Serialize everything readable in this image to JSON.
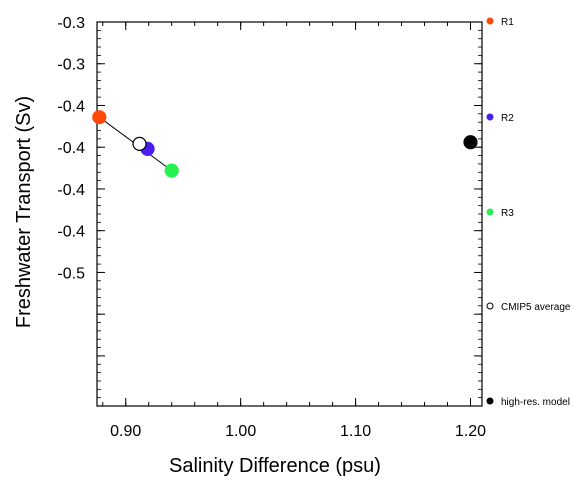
{
  "chart_data": {
    "type": "scatter",
    "xlabel": "Salinity Difference (psu)",
    "ylabel": "Freshwater Transport (Sv)",
    "xlim": [
      0.875,
      1.21
    ],
    "ylim": [
      -0.53,
      -0.3
    ],
    "x_ticks": [
      0.9,
      1.0,
      1.1,
      1.2
    ],
    "x_tick_labels": [
      "0.90",
      "1.00",
      "1.10",
      "1.20"
    ],
    "y_ticks": [
      -0.3,
      -0.35,
      -0.4,
      -0.45,
      -0.5
    ],
    "y_tick_labels": [
      "-0.3",
      "-0.3",
      "-0.4",
      "-0.4",
      "-0.4",
      "-0.4",
      "-0.5"
    ],
    "y_tick_positions": [
      -0.3,
      -0.325,
      -0.35,
      -0.375,
      -0.4,
      -0.425,
      -0.45,
      -0.475,
      -0.5
    ],
    "y_labeled_ticks": [
      -0.3,
      -0.325,
      -0.35,
      -0.375,
      -0.4,
      -0.425,
      -0.45
    ],
    "grid": false,
    "legend_placement": "right",
    "series": [
      {
        "name": "R1",
        "color": "#ff4a0a",
        "filled": true,
        "points": [
          {
            "x": 0.877,
            "y": -0.357
          }
        ]
      },
      {
        "name": "R2",
        "color": "#4a1cf0",
        "filled": true,
        "points": [
          {
            "x": 0.919,
            "y": -0.376
          }
        ]
      },
      {
        "name": "R3",
        "color": "#28f050",
        "filled": true,
        "points": [
          {
            "x": 0.94,
            "y": -0.389
          }
        ]
      },
      {
        "name": "CMIP5 average",
        "color": "#000000",
        "filled": false,
        "points": [
          {
            "x": 0.912,
            "y": -0.373
          }
        ]
      },
      {
        "name": "high-res. model",
        "color": "#000000",
        "filled": true,
        "points": [
          {
            "x": 1.2,
            "y": -0.372
          }
        ]
      }
    ],
    "lines": [
      {
        "from": {
          "x": 0.877,
          "y": -0.357
        },
        "to": {
          "x": 0.94,
          "y": -0.389
        }
      }
    ]
  }
}
